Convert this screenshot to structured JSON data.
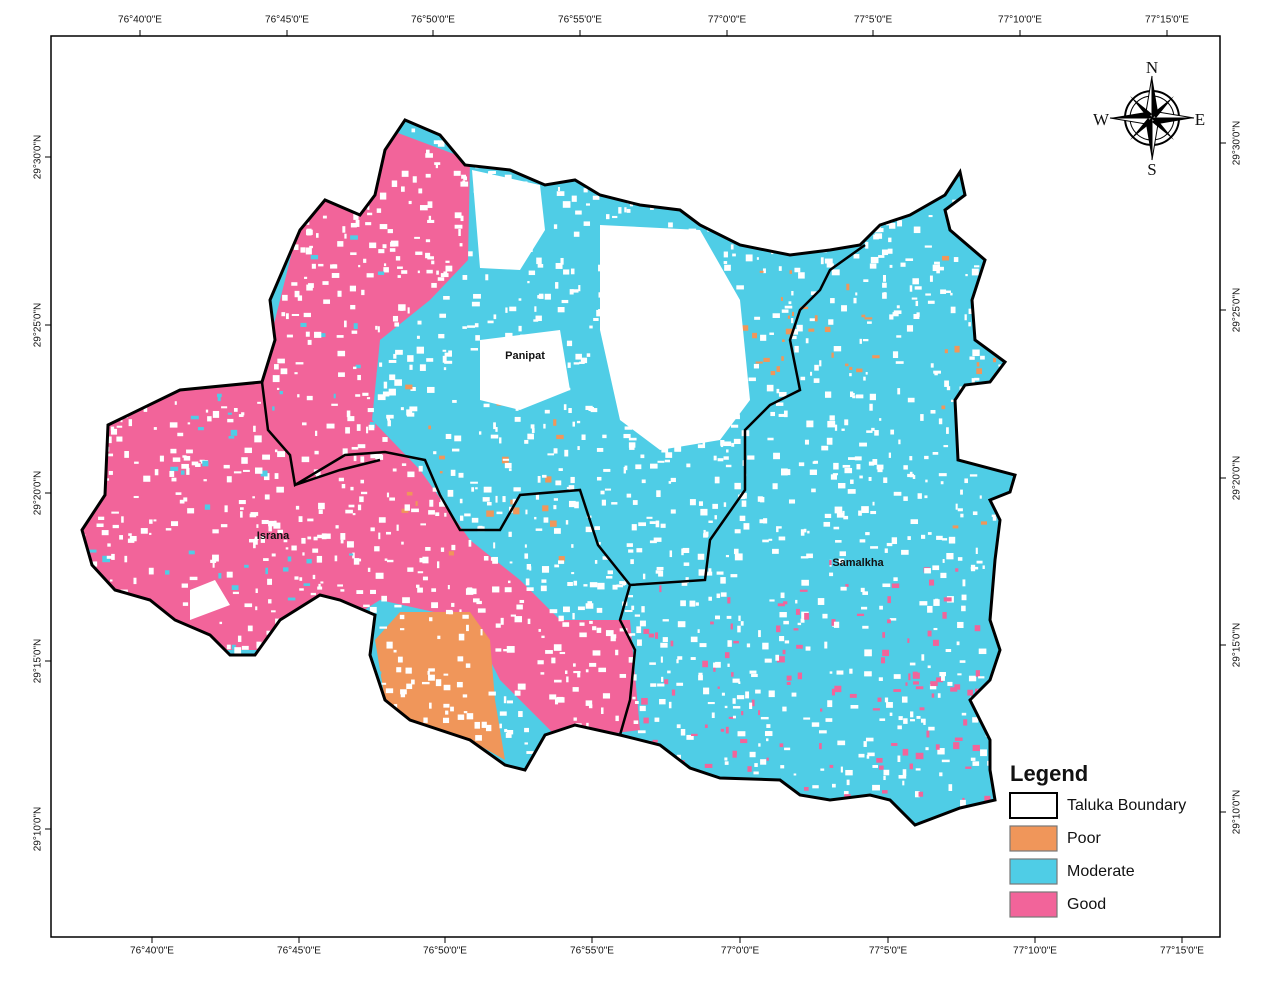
{
  "map": {
    "graticule": {
      "top": [
        "76°40'0\"E",
        "76°45'0\"E",
        "76°50'0\"E",
        "76°55'0\"E",
        "77°0'0\"E",
        "77°5'0\"E",
        "77°10'0\"E",
        "77°15'0\"E"
      ],
      "bottom": [
        "76°40'0\"E",
        "76°45'0\"E",
        "76°50'0\"E",
        "76°55'0\"E",
        "77°0'0\"E",
        "77°5'0\"E",
        "77°10'0\"E",
        "77°15'0\"E"
      ],
      "left": [
        "29°30'0\"N",
        "29°25'0\"N",
        "29°20'0\"N",
        "29°15'0\"N",
        "29°10'0\"N"
      ],
      "right": [
        "29°30'0\"N",
        "29°25'0\"N",
        "29°20'0\"N",
        "29°15'0\"N",
        "29°10'0\"N"
      ]
    },
    "places": [
      {
        "label": "Panipat"
      },
      {
        "label": "Israna"
      },
      {
        "label": "Samalkha"
      }
    ],
    "compass": {
      "north": "N",
      "east": "E",
      "south": "S",
      "west": "W"
    },
    "legend": {
      "title": "Legend",
      "items": [
        {
          "label": "Taluka Boundary",
          "color": "#ffffff"
        },
        {
          "label": "Poor",
          "color": "#f0965a"
        },
        {
          "label": "Moderate",
          "color": "#4fcde6"
        },
        {
          "label": "Good",
          "color": "#f2649a"
        }
      ]
    }
  }
}
